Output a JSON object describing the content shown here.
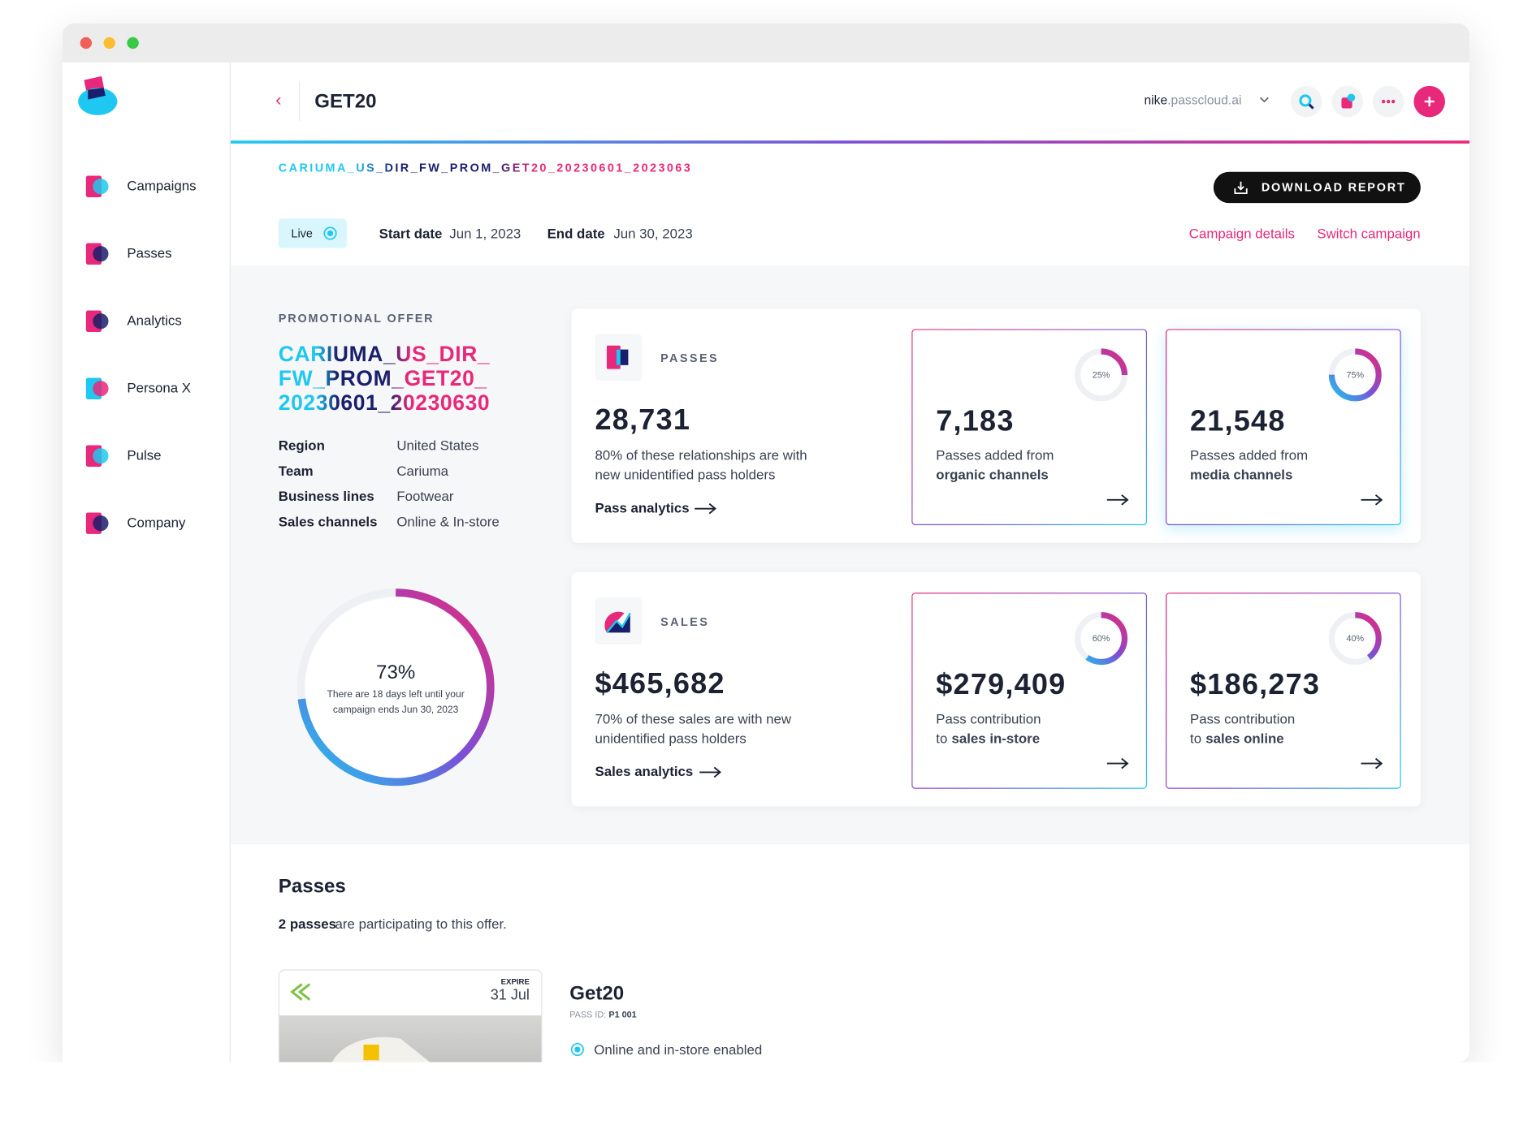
{
  "sidebar": {
    "items": [
      "Campaigns",
      "Passes",
      "Analytics",
      "Persona X",
      "Pulse",
      "Company"
    ]
  },
  "header": {
    "title": "GET20",
    "account_org": "nike",
    "account_domain": ".passcloud.ai"
  },
  "campaign": {
    "code": "CARIUMA_US_DIR_FW_PROM_GET20_20230601_2023063",
    "download": "DOWNLOAD REPORT",
    "status": "Live",
    "start_label": "Start date",
    "start": "Jun 1, 2023",
    "end_label": "End date",
    "end": "Jun 30, 2023",
    "links": [
      "Campaign details",
      "Switch campaign"
    ]
  },
  "offer": {
    "label": "PROMOTIONAL OFFER",
    "name": [
      "CARIUMA_US_DIR_",
      "FW_PROM_GET20_",
      "20230601_20230630"
    ],
    "details": [
      [
        "Region",
        "United States"
      ],
      [
        "Team",
        "Cariuma"
      ],
      [
        "Business lines",
        "Footwear"
      ],
      [
        "Sales channels",
        "Online & In-store"
      ]
    ],
    "progress": {
      "value": 73,
      "label": "73%",
      "text": [
        "There are 18 days left until your",
        "campaign ends Jun 30, 2023"
      ]
    }
  },
  "passes_card": {
    "label": "PASSES",
    "total": "28,731",
    "desc": [
      "80% of these relationships are with",
      "new unidentified pass holders"
    ],
    "link": "Pass analytics",
    "tiles": [
      {
        "pct": {
          "value": 25,
          "label": "25%"
        },
        "amount": "7,183",
        "line1": "Passes added from",
        "bold": "organic channels"
      },
      {
        "pct": {
          "value": 75,
          "label": "75%"
        },
        "amount": "21,548",
        "line1": "Passes added from",
        "bold": "media channels"
      }
    ]
  },
  "sales_card": {
    "label": "SALES",
    "total": "$465,682",
    "desc": [
      "70% of these sales are with new",
      "unidentified pass holders"
    ],
    "link": "Sales analytics",
    "tiles": [
      {
        "pct": {
          "value": 60,
          "label": "60%"
        },
        "amount": "$279,409",
        "line1": "Pass contribution",
        "prefix": "to",
        "bold": "sales in-store"
      },
      {
        "pct": {
          "value": 40,
          "label": "40%"
        },
        "amount": "$186,273",
        "line1": "Pass contribution",
        "prefix": "to",
        "bold": "sales online"
      }
    ]
  },
  "passes_section": {
    "title": "Passes",
    "count": "2 passes",
    "text": "are participating to this offer.",
    "pass": {
      "expire_label": "EXPIRE",
      "expire": "31 Jul",
      "name": "Get20",
      "id_label": "PASS ID:",
      "id": "P1 001",
      "feature": "Online and in-store enabled"
    }
  }
}
